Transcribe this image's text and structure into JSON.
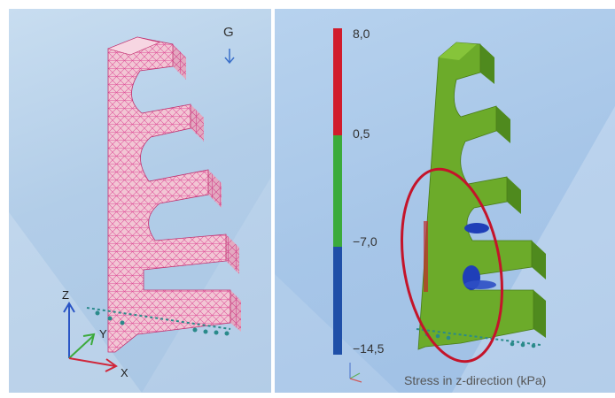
{
  "left_view": {
    "gravity_label": "G",
    "axes": {
      "z": "Z",
      "y": "Y",
      "x": "X"
    }
  },
  "right_view": {
    "legend": {
      "labels": [
        "8,0",
        "0,5",
        "−7,0",
        "−14,5"
      ],
      "colors": {
        "tension": "#d11c2c",
        "neutral": "#3bab3b",
        "compression": "#1f4fa8"
      }
    },
    "caption": "Stress in z-direction (kPa)"
  },
  "colors": {
    "mesh_fill": "#f2c6d4",
    "mesh_lines": "#e0509a",
    "result_fill": "#6cab2a",
    "highlight": "#c4142a"
  }
}
